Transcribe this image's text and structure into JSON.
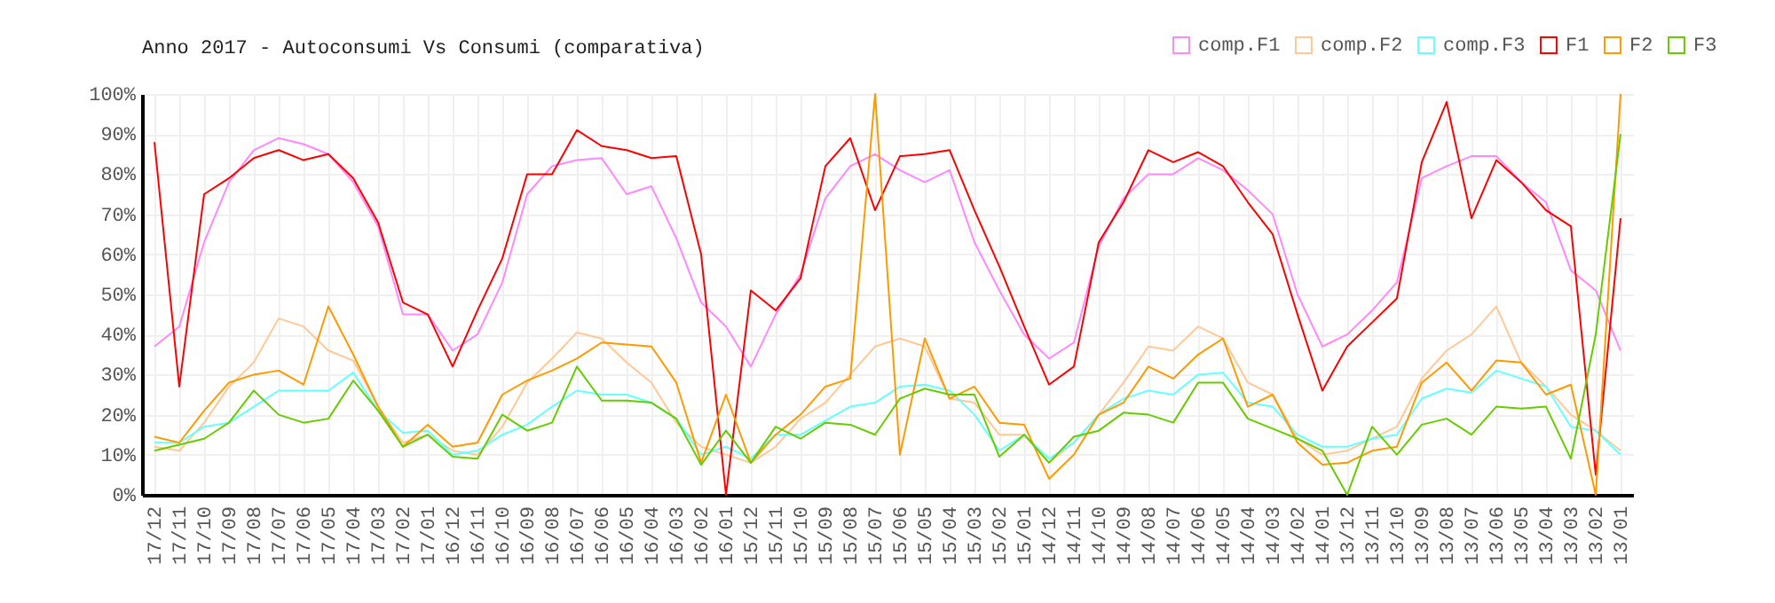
{
  "chart_data": {
    "type": "line",
    "title": "Anno 2017 - Autoconsumi Vs Consumi (comparativa)",
    "categories": [
      "17/12",
      "17/11",
      "17/10",
      "17/09",
      "17/08",
      "17/07",
      "17/06",
      "17/05",
      "17/04",
      "17/03",
      "17/02",
      "17/01",
      "16/12",
      "16/11",
      "16/10",
      "16/09",
      "16/08",
      "16/07",
      "16/06",
      "16/05",
      "16/04",
      "16/03",
      "16/02",
      "16/01",
      "15/12",
      "15/11",
      "15/10",
      "15/09",
      "15/08",
      "15/07",
      "15/06",
      "15/05",
      "15/04",
      "15/03",
      "15/02",
      "15/01",
      "14/12",
      "14/11",
      "14/10",
      "14/09",
      "14/08",
      "14/07",
      "14/06",
      "14/05",
      "14/04",
      "14/03",
      "14/02",
      "14/01",
      "13/12",
      "13/11",
      "13/10",
      "13/09",
      "13/08",
      "13/07",
      "13/06",
      "13/05",
      "13/04",
      "13/03",
      "13/02",
      "13/01"
    ],
    "series": [
      {
        "name": "comp.F1",
        "color": "#ff88ff",
        "values": [
          37,
          42,
          63,
          78,
          86,
          89,
          87.5,
          85,
          78,
          67,
          45,
          45,
          36,
          40,
          53,
          75,
          82,
          83.5,
          84,
          75,
          77,
          64,
          48,
          42,
          32,
          45,
          55,
          74,
          82,
          85,
          81,
          78,
          81,
          63,
          51,
          40,
          34,
          38,
          62,
          74,
          80,
          80,
          84,
          81,
          76,
          70,
          50,
          37,
          40,
          46,
          53,
          79,
          82,
          84.5,
          84.5,
          78,
          73,
          56,
          51,
          36
        ]
      },
      {
        "name": "comp.F2",
        "color": "#ffc896",
        "values": [
          12,
          11,
          18,
          27,
          33,
          44,
          42,
          36,
          33.5,
          22,
          13,
          15,
          11,
          10,
          17,
          28,
          34,
          40.5,
          39,
          33,
          28,
          18,
          12,
          10,
          8,
          12,
          19,
          23,
          30,
          37,
          39,
          37,
          24,
          23,
          15,
          15,
          8,
          13,
          20,
          28,
          37,
          36,
          42,
          39,
          28,
          25,
          14,
          10,
          11,
          14,
          17,
          29,
          36,
          40,
          47,
          33,
          27,
          20,
          16,
          11
        ]
      },
      {
        "name": "comp.F3",
        "color": "#66ffff",
        "values": [
          13,
          13,
          17,
          18,
          22,
          26,
          26,
          26,
          30.5,
          21,
          15.5,
          16,
          10,
          11,
          15,
          17.5,
          22,
          26,
          25,
          25,
          23,
          19,
          10,
          12,
          9,
          15,
          15,
          18.5,
          22,
          23,
          27,
          27.5,
          26,
          20,
          11,
          15,
          9,
          13,
          20,
          24,
          26,
          25,
          30,
          30.5,
          23,
          22,
          15,
          12,
          12,
          14,
          15,
          24,
          26.5,
          25.5,
          31,
          29,
          27,
          17,
          16,
          10
        ]
      },
      {
        "name": "F1",
        "color": "#ff0000",
        "values": [
          88,
          27,
          75,
          79,
          84,
          86,
          83.5,
          85,
          79,
          68,
          48,
          45,
          32,
          46,
          59,
          80,
          80,
          91,
          87,
          86,
          84,
          84.5,
          60,
          0,
          51,
          46,
          54,
          82,
          89,
          71,
          84.5,
          85,
          86,
          71,
          57,
          42,
          27.5,
          32,
          63,
          73,
          86,
          83,
          85.5,
          82,
          73,
          65,
          45,
          26,
          37,
          43,
          49,
          83,
          98,
          69,
          83.5,
          78,
          71,
          67,
          5,
          69
        ]
      },
      {
        "name": "F2",
        "color": "#ff9900",
        "values": [
          14.5,
          13,
          21,
          28,
          30,
          31,
          27.5,
          47,
          35,
          22,
          12,
          17.5,
          12,
          13,
          25,
          28.5,
          31,
          34,
          38,
          37.5,
          37,
          28,
          8,
          25,
          8,
          15,
          20,
          27,
          29,
          100,
          10,
          39,
          24,
          27,
          18,
          17.5,
          4,
          10,
          20,
          23,
          32,
          29,
          35,
          39,
          22,
          25,
          13,
          7.5,
          8,
          11,
          12,
          28,
          33,
          26,
          33.5,
          33,
          25,
          27.5,
          0,
          100
        ]
      },
      {
        "name": "F3",
        "color": "#66cc00",
        "values": [
          11,
          12.5,
          14,
          18,
          26,
          20,
          18,
          19,
          28.5,
          21,
          12,
          15,
          9.5,
          9,
          20,
          16,
          18,
          32,
          23.5,
          23.5,
          23,
          19,
          7.5,
          16,
          8,
          17,
          14,
          18,
          17.5,
          15,
          24,
          26.5,
          25,
          25,
          9.5,
          15,
          8,
          14.5,
          16,
          20.5,
          20,
          18,
          28,
          28,
          19,
          16.5,
          14,
          11,
          0,
          17,
          10,
          17.5,
          19,
          15,
          22,
          21.5,
          22,
          9,
          40,
          90
        ]
      }
    ],
    "ylim": [
      0,
      100
    ],
    "yticks": [
      {
        "value": 0,
        "label": "0%"
      },
      {
        "value": 10,
        "label": "10%"
      },
      {
        "value": 20,
        "label": "20%"
      },
      {
        "value": 30,
        "label": "30%"
      },
      {
        "value": 40,
        "label": "40%"
      },
      {
        "value": 50,
        "label": "50%"
      },
      {
        "value": 60,
        "label": "60%"
      },
      {
        "value": 70,
        "label": "70%"
      },
      {
        "value": 80,
        "label": "80%"
      },
      {
        "value": 90,
        "label": "90%"
      },
      {
        "value": 100,
        "label": "100%"
      }
    ],
    "grid": true,
    "legend": "top right",
    "marker": "none",
    "line_style": "solid"
  }
}
